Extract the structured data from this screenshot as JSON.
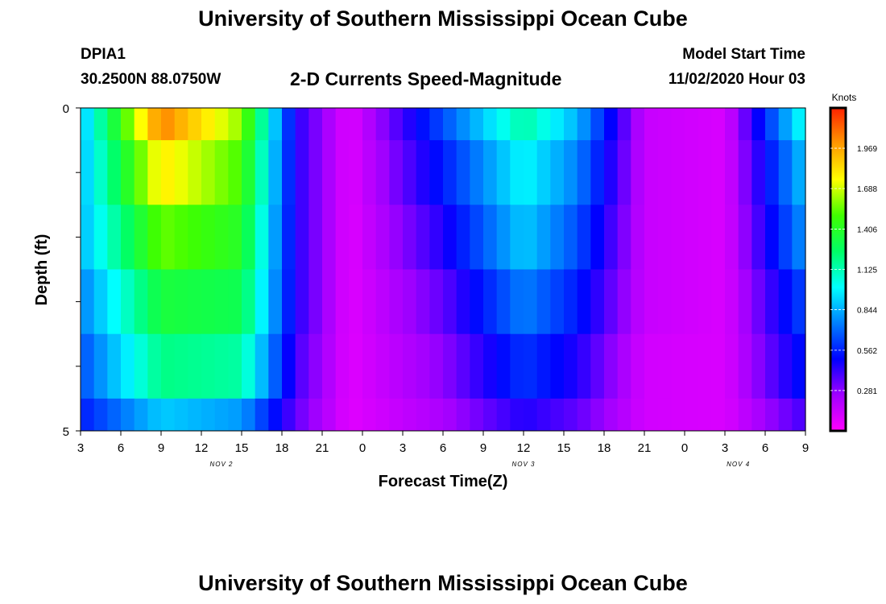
{
  "header": {
    "title": "University of Southern Mississippi Ocean Cube",
    "station_id": "DPIA1",
    "location": "30.2500N 88.0750W",
    "subtitle": "2-D Currents Speed-Magnitude",
    "model_start_label": "Model Start Time",
    "model_start_value": "11/02/2020 Hour 03"
  },
  "footer": {
    "title": "University of Southern Mississippi Ocean Cube"
  },
  "colorbar": {
    "unit": "Knots",
    "ticks": [
      "0.281",
      "0.562",
      "0.844",
      "1.125",
      "1.406",
      "1.688",
      "1.969"
    ],
    "tick_values": [
      0.281,
      0.562,
      0.844,
      1.125,
      1.406,
      1.688,
      1.969
    ],
    "range": [
      0,
      2.25
    ],
    "colors": [
      "#ff00ff",
      "#a000ff",
      "#0000ff",
      "#0080ff",
      "#00ffff",
      "#00ff66",
      "#40ff00",
      "#ffff00",
      "#ff9900",
      "#ff2200"
    ]
  },
  "chart_data": {
    "type": "heatmap",
    "xlabel": "Forecast Time(Z)",
    "ylabel": "Depth (ft)",
    "x_tick_labels": [
      "3",
      "6",
      "9",
      "12",
      "15",
      "18",
      "21",
      "0",
      "3",
      "6",
      "9",
      "12",
      "15",
      "18",
      "21",
      "0",
      "3",
      "6",
      "9"
    ],
    "date_labels": [
      {
        "text": "NOV 2",
        "hour_index": 10.5
      },
      {
        "text": "NOV 3",
        "hour_index": 33
      },
      {
        "text": "NOV 4",
        "hour_index": 49
      }
    ],
    "y_tick_labels": [
      "0",
      "5"
    ],
    "ylim": [
      0,
      5
    ],
    "hours": 54,
    "depth_levels": [
      0.25,
      1.25,
      2.25,
      3.25,
      4.25,
      4.75
    ],
    "depth_bounds": [
      0,
      0.5,
      1.5,
      2.5,
      3.5,
      4.5,
      5
    ],
    "time_hours_since_start": [
      0,
      6,
      12,
      16,
      20,
      27,
      33,
      37,
      42,
      48,
      54
    ],
    "speed_knots": [
      [
        0.85,
        2.05,
        1.6,
        0.45,
        0.08,
        0.65,
        1.15,
        0.85,
        0.15,
        0.1,
        1.05
      ],
      [
        0.85,
        1.8,
        1.5,
        0.45,
        0.08,
        0.55,
        1.0,
        0.75,
        0.15,
        0.1,
        0.9
      ],
      [
        0.85,
        1.55,
        1.4,
        0.45,
        0.08,
        0.45,
        0.9,
        0.65,
        0.15,
        0.1,
        0.8
      ],
      [
        0.75,
        1.35,
        1.3,
        0.45,
        0.08,
        0.35,
        0.75,
        0.55,
        0.15,
        0.1,
        0.65
      ],
      [
        0.65,
        1.2,
        1.15,
        0.4,
        0.08,
        0.28,
        0.6,
        0.45,
        0.12,
        0.1,
        0.55
      ],
      [
        0.55,
        0.9,
        0.8,
        0.35,
        0.08,
        0.22,
        0.45,
        0.35,
        0.12,
        0.1,
        0.4
      ]
    ]
  }
}
